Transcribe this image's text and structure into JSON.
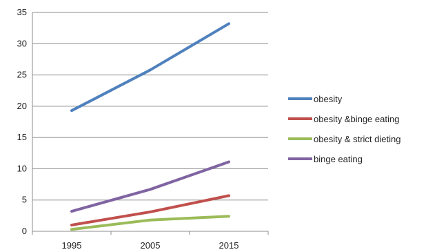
{
  "chart_data": {
    "type": "line",
    "x": [
      "1995",
      "2005",
      "2015"
    ],
    "ylim": [
      0,
      35
    ],
    "yticks": [
      "0",
      "5",
      "10",
      "15",
      "20",
      "25",
      "30",
      "35"
    ],
    "grid": true,
    "legend_position": "right",
    "series": [
      {
        "name": "obesity",
        "color": "#4F81BD",
        "values": [
          19.3,
          25.8,
          33.2
        ]
      },
      {
        "name": "obesity &binge eating",
        "color": "#C0504D",
        "values": [
          1.0,
          3.1,
          5.7
        ]
      },
      {
        "name": "obesity & strict dieting",
        "color": "#9BBB59",
        "values": [
          0.3,
          1.8,
          2.4
        ]
      },
      {
        "name": "binge eating",
        "color": "#8064A2",
        "values": [
          3.2,
          6.7,
          11.1
        ]
      }
    ]
  }
}
